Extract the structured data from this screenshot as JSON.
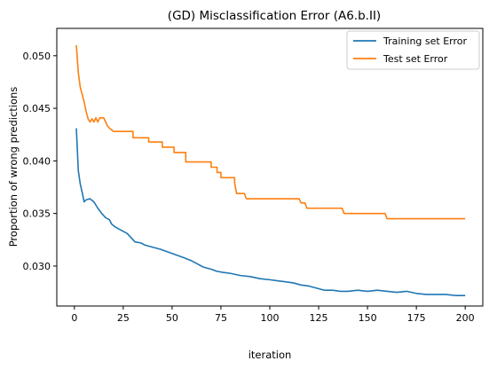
{
  "chart_data": {
    "type": "line",
    "title": "(GD) Misclassification Error (A6.b.II)",
    "xlabel": "iteration",
    "ylabel": "Proportion of wrong predictions",
    "xlim": [
      -9,
      209
    ],
    "ylim": [
      0.0262,
      0.0526
    ],
    "xticks": [
      0,
      25,
      50,
      75,
      100,
      125,
      150,
      175,
      200
    ],
    "xtick_labels": [
      "0",
      "25",
      "50",
      "75",
      "100",
      "125",
      "150",
      "175",
      "200"
    ],
    "yticks": [
      0.03,
      0.035,
      0.04,
      0.045,
      0.05
    ],
    "ytick_labels": [
      "0.030",
      "0.035",
      "0.040",
      "0.045",
      "0.050"
    ],
    "legend_position": "top-right",
    "grid": false,
    "series": [
      {
        "name": "Training set Error",
        "color": "#1f77b4",
        "points": [
          [
            1,
            0.0431
          ],
          [
            2,
            0.0391
          ],
          [
            3,
            0.0378
          ],
          [
            4,
            0.037
          ],
          [
            5,
            0.0361
          ],
          [
            6,
            0.0363
          ],
          [
            8,
            0.0364
          ],
          [
            10,
            0.0361
          ],
          [
            12,
            0.0355
          ],
          [
            14,
            0.035
          ],
          [
            16,
            0.0346
          ],
          [
            18,
            0.0344
          ],
          [
            19,
            0.034
          ],
          [
            21,
            0.0337
          ],
          [
            23,
            0.0335
          ],
          [
            25,
            0.0333
          ],
          [
            27,
            0.0331
          ],
          [
            29,
            0.0327
          ],
          [
            31,
            0.0323
          ],
          [
            34,
            0.0322
          ],
          [
            36,
            0.032
          ],
          [
            40,
            0.0318
          ],
          [
            44,
            0.0316
          ],
          [
            47,
            0.0314
          ],
          [
            50,
            0.0312
          ],
          [
            53,
            0.031
          ],
          [
            56,
            0.0308
          ],
          [
            60,
            0.0305
          ],
          [
            63,
            0.0302
          ],
          [
            66,
            0.0299
          ],
          [
            70,
            0.0297
          ],
          [
            73,
            0.0295
          ],
          [
            76,
            0.0294
          ],
          [
            80,
            0.0293
          ],
          [
            85,
            0.0291
          ],
          [
            90,
            0.029
          ],
          [
            95,
            0.0288
          ],
          [
            100,
            0.0287
          ],
          [
            104,
            0.0286
          ],
          [
            108,
            0.0285
          ],
          [
            112,
            0.0284
          ],
          [
            116,
            0.0282
          ],
          [
            120,
            0.0281
          ],
          [
            124,
            0.0279
          ],
          [
            128,
            0.0277
          ],
          [
            132,
            0.0277
          ],
          [
            136,
            0.0276
          ],
          [
            140,
            0.0276
          ],
          [
            145,
            0.0277
          ],
          [
            150,
            0.0276
          ],
          [
            155,
            0.0277
          ],
          [
            160,
            0.0276
          ],
          [
            165,
            0.0275
          ],
          [
            170,
            0.0276
          ],
          [
            175,
            0.0274
          ],
          [
            180,
            0.0273
          ],
          [
            185,
            0.0273
          ],
          [
            190,
            0.0273
          ],
          [
            195,
            0.0272
          ],
          [
            200,
            0.0272
          ]
        ]
      },
      {
        "name": "Test set Error",
        "color": "#ff7f0e",
        "points": [
          [
            1,
            0.051
          ],
          [
            2,
            0.0484
          ],
          [
            3,
            0.047
          ],
          [
            4,
            0.0463
          ],
          [
            5,
            0.0456
          ],
          [
            6,
            0.0447
          ],
          [
            7,
            0.044
          ],
          [
            8,
            0.0437
          ],
          [
            9,
            0.044
          ],
          [
            10,
            0.0437
          ],
          [
            11,
            0.0441
          ],
          [
            12,
            0.0437
          ],
          [
            13,
            0.0441
          ],
          [
            14,
            0.0441
          ],
          [
            15,
            0.0441
          ],
          [
            16,
            0.0437
          ],
          [
            17,
            0.0433
          ],
          [
            18,
            0.0431
          ],
          [
            20,
            0.0428
          ],
          [
            30,
            0.0428
          ],
          [
            30,
            0.0422
          ],
          [
            38,
            0.0422
          ],
          [
            38,
            0.0418
          ],
          [
            45,
            0.0418
          ],
          [
            45,
            0.0413
          ],
          [
            51,
            0.0413
          ],
          [
            51,
            0.0408
          ],
          [
            57,
            0.0408
          ],
          [
            57,
            0.0399
          ],
          [
            70,
            0.0399
          ],
          [
            70,
            0.0394
          ],
          [
            73,
            0.0394
          ],
          [
            73,
            0.0389
          ],
          [
            75,
            0.0389
          ],
          [
            75,
            0.0384
          ],
          [
            82,
            0.0384
          ],
          [
            82,
            0.0379
          ],
          [
            83,
            0.0369
          ],
          [
            87,
            0.0369
          ],
          [
            88,
            0.0364
          ],
          [
            115,
            0.0364
          ],
          [
            116,
            0.036
          ],
          [
            118,
            0.036
          ],
          [
            119,
            0.0355
          ],
          [
            137,
            0.0355
          ],
          [
            138,
            0.035
          ],
          [
            159,
            0.035
          ],
          [
            160,
            0.0345
          ],
          [
            200,
            0.0345
          ]
        ]
      }
    ]
  }
}
